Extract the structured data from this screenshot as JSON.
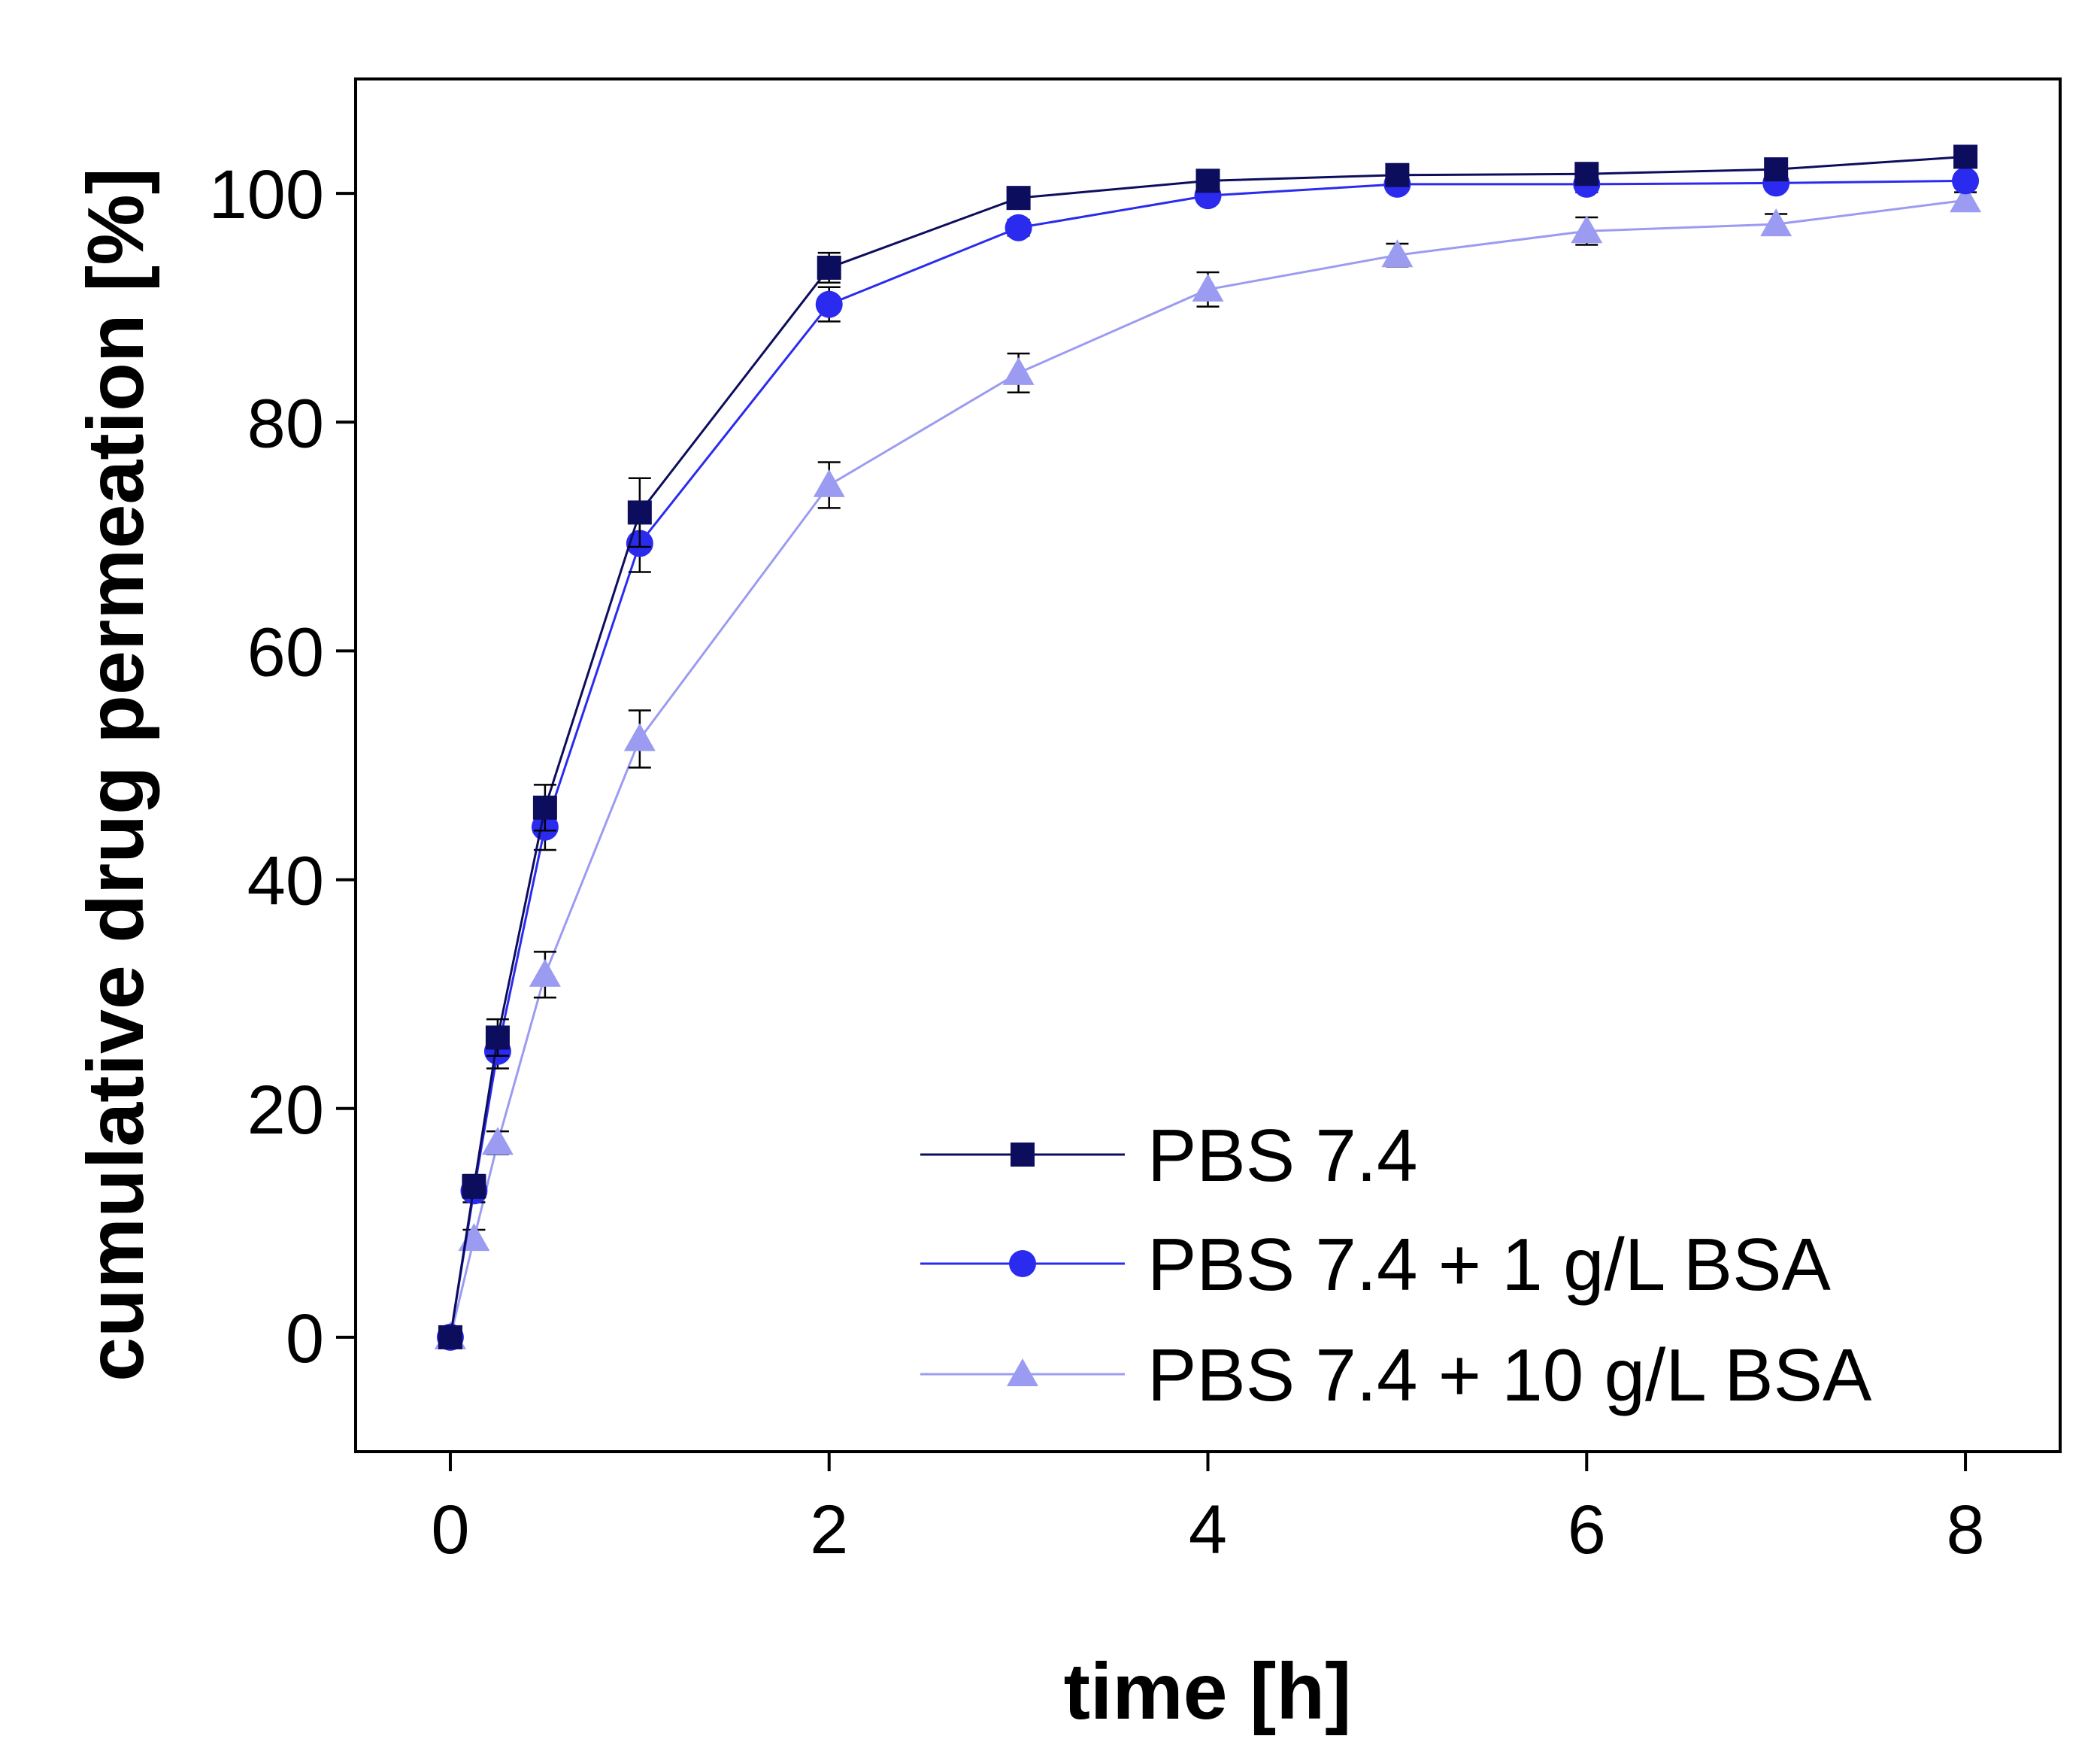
{
  "chart_data": {
    "type": "line",
    "title": "",
    "xlabel": "time [h]",
    "ylabel": "cumulative drug permeation [%]",
    "xlim": [
      -0.5,
      8.5
    ],
    "ylim": [
      -10,
      110
    ],
    "xticks": [
      0,
      2,
      4,
      6,
      8
    ],
    "yticks": [
      0,
      20,
      40,
      60,
      80,
      100
    ],
    "grid": false,
    "legend_position": "bottom-right",
    "series": [
      {
        "name": "PBS 7.4",
        "marker": "square",
        "color": "#0d0d5e",
        "x": [
          0,
          0.125,
          0.25,
          0.5,
          1,
          2,
          3,
          4,
          5,
          6,
          7,
          8
        ],
        "y": [
          0,
          13.2,
          26.2,
          46.3,
          72.1,
          93.5,
          99.6,
          101.1,
          101.6,
          101.7,
          102.1,
          103.2
        ],
        "err": [
          0.5,
          1.0,
          1.6,
          2.0,
          3.0,
          1.3,
          0.7,
          0.7,
          0.6,
          0.7,
          0.6,
          0.6
        ]
      },
      {
        "name": "PBS 7.4 + 1 g/L BSA",
        "marker": "circle",
        "color": "#2b2bef",
        "x": [
          0,
          0.125,
          0.25,
          0.5,
          1,
          2,
          3,
          4,
          5,
          6,
          7,
          8
        ],
        "y": [
          0,
          12.8,
          25.0,
          44.6,
          69.4,
          90.3,
          97.0,
          99.8,
          100.8,
          100.8,
          100.9,
          101.1
        ],
        "err": [
          0.5,
          1.0,
          1.5,
          2.0,
          2.5,
          1.5,
          0.7,
          0.6,
          0.6,
          0.7,
          0.6,
          0.6
        ]
      },
      {
        "name": "PBS 7.4 + 10 g/L BSA",
        "marker": "triangle",
        "color": "#9b9bf2",
        "x": [
          0,
          0.125,
          0.25,
          0.5,
          1,
          2,
          3,
          4,
          5,
          6,
          7,
          8
        ],
        "y": [
          0,
          8.6,
          17.0,
          31.7,
          52.3,
          74.5,
          84.3,
          91.6,
          94.6,
          96.7,
          97.3,
          99.4
        ],
        "err": [
          0.3,
          0.8,
          1.0,
          2.0,
          2.5,
          2.0,
          1.7,
          1.5,
          1.0,
          1.2,
          0.9,
          0.7
        ]
      }
    ]
  }
}
